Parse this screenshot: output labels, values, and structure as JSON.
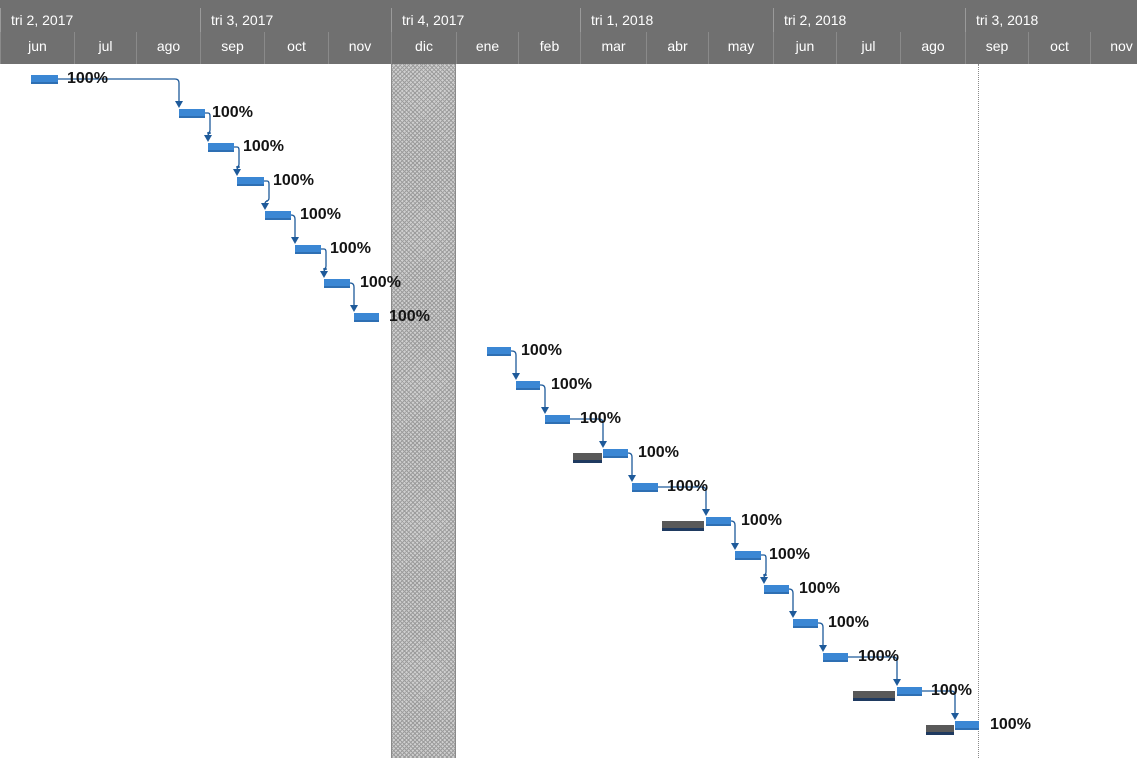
{
  "timescale": {
    "quarters": [
      "tri 2, 2017",
      "tri 3, 2017",
      "tri 4, 2017",
      "tri 1, 2018",
      "tri 2, 2018",
      "tri 3, 2018"
    ],
    "months": [
      "jun",
      "jul",
      "ago",
      "sep",
      "oct",
      "nov",
      "dic",
      "ene",
      "feb",
      "mar",
      "abr",
      "may",
      "jun",
      "jul",
      "ago",
      "sep",
      "oct",
      "nov"
    ]
  },
  "colors": {
    "header_bg": "#707070",
    "task_bar": "#3b87d4",
    "link": "#1e5a9a",
    "baseline": "#595959"
  },
  "tasks": [
    {
      "percent_complete": "100%"
    },
    {
      "percent_complete": "100%"
    },
    {
      "percent_complete": "100%"
    },
    {
      "percent_complete": "100%"
    },
    {
      "percent_complete": "100%"
    },
    {
      "percent_complete": "100%"
    },
    {
      "percent_complete": "100%"
    },
    {
      "percent_complete": "100%"
    },
    {
      "percent_complete": "100%"
    },
    {
      "percent_complete": "100%"
    },
    {
      "percent_complete": "100%"
    },
    {
      "percent_complete": "100%"
    },
    {
      "percent_complete": "100%"
    },
    {
      "percent_complete": "100%"
    },
    {
      "percent_complete": "100%"
    },
    {
      "percent_complete": "100%"
    },
    {
      "percent_complete": "100%"
    },
    {
      "percent_complete": "100%"
    },
    {
      "percent_complete": "100%"
    },
    {
      "percent_complete": "100%"
    }
  ]
}
